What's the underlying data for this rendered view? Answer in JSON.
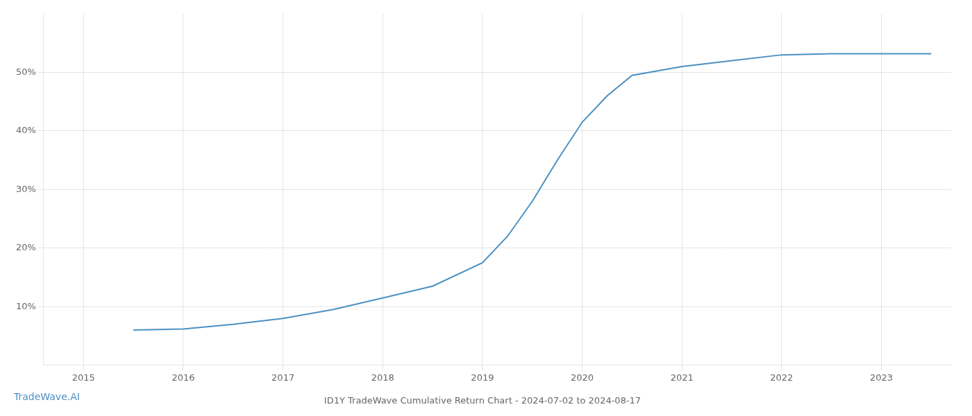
{
  "chart_data": {
    "type": "line",
    "title": "ID1Y TradeWave Cumulative Return Chart - 2024-07-02 to 2024-08-17",
    "annotations": [
      "TradeWave.AI"
    ],
    "color": "#4a90c4",
    "x": [
      2015.5,
      2016.0,
      2016.5,
      2017.0,
      2017.5,
      2018.0,
      2018.5,
      2019.0,
      2019.25,
      2019.5,
      2019.75,
      2020.0,
      2020.25,
      2020.5,
      2021.0,
      2021.5,
      2022.0,
      2022.5,
      2023.0,
      2023.5
    ],
    "values": [
      6.0,
      6.2,
      7.0,
      8.0,
      9.5,
      11.5,
      13.5,
      17.5,
      22.0,
      28.0,
      35.0,
      41.5,
      46.0,
      49.5,
      51.0,
      52.0,
      53.0,
      53.2,
      53.2,
      53.2
    ],
    "xlim": [
      2014.6,
      2023.7
    ],
    "xticks": [
      2015,
      2016,
      2017,
      2018,
      2019,
      2020,
      2021,
      2022,
      2023
    ],
    "ylim": [
      0,
      60
    ],
    "yticks": [
      {
        "value": 10,
        "label": "10%"
      },
      {
        "value": 20,
        "label": "20%"
      },
      {
        "value": 30,
        "label": "30%"
      },
      {
        "value": 40,
        "label": "40%"
      },
      {
        "value": 50,
        "label": "50%"
      }
    ],
    "grid": true
  }
}
